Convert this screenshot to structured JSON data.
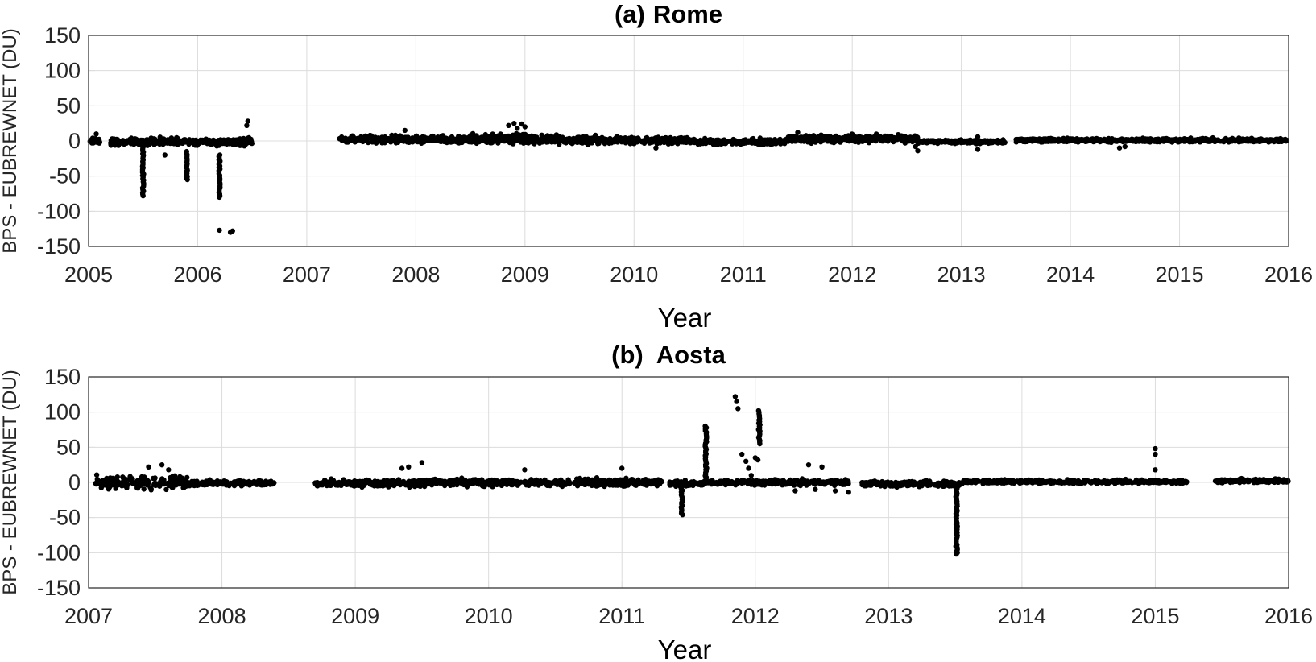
{
  "chart_data": [
    {
      "type": "scatter",
      "panel_label": "(a)",
      "title": "Rome",
      "xlabel": "Year",
      "ylabel": "BPS - EUBREWNET (DU)",
      "xlim": [
        2005,
        2016
      ],
      "ylim": [
        -150,
        150
      ],
      "xticks": [
        "2005",
        "2006",
        "2007",
        "2008",
        "2009",
        "2010",
        "2011",
        "2012",
        "2013",
        "2014",
        "2015",
        "2016"
      ],
      "yticks": [
        "150",
        "100",
        "50",
        "0",
        "-50",
        "-100",
        "-150"
      ],
      "grid": true,
      "clusters": [
        {
          "x_start": 2005.0,
          "x_end": 2005.12,
          "center": 0,
          "spread": 3
        },
        {
          "x_start": 2005.2,
          "x_end": 2006.5,
          "center": -1,
          "spread": 4
        },
        {
          "x_start": 2007.3,
          "x_end": 2008.5,
          "center": 2,
          "spread": 4
        },
        {
          "x_start": 2008.5,
          "x_end": 2009.3,
          "center": 3,
          "spread": 5
        },
        {
          "x_start": 2009.3,
          "x_end": 2010.5,
          "center": 1,
          "spread": 4
        },
        {
          "x_start": 2010.5,
          "x_end": 2011.4,
          "center": -1,
          "spread": 3
        },
        {
          "x_start": 2011.4,
          "x_end": 2012.6,
          "center": 3,
          "spread": 4
        },
        {
          "x_start": 2012.6,
          "x_end": 2013.4,
          "center": -1,
          "spread": 2
        },
        {
          "x_start": 2013.5,
          "x_end": 2016.0,
          "center": 1,
          "spread": 2
        }
      ],
      "spikes": [
        {
          "x": 2005.5,
          "y_from": -5,
          "y_to": -78
        },
        {
          "x": 2005.9,
          "y_from": -15,
          "y_to": -55
        },
        {
          "x": 2006.2,
          "y_from": -20,
          "y_to": -80
        }
      ],
      "points": [
        [
          2005.07,
          10
        ],
        [
          2005.7,
          -20
        ],
        [
          2006.2,
          -127
        ],
        [
          2006.3,
          -130
        ],
        [
          2006.32,
          -128
        ],
        [
          2006.45,
          22
        ],
        [
          2006.46,
          28
        ],
        [
          2007.9,
          15
        ],
        [
          2008.85,
          22
        ],
        [
          2008.9,
          25
        ],
        [
          2008.93,
          18
        ],
        [
          2008.97,
          24
        ],
        [
          2009.0,
          20
        ],
        [
          2010.2,
          -10
        ],
        [
          2011.5,
          12
        ],
        [
          2012.58,
          -8
        ],
        [
          2012.6,
          -14
        ],
        [
          2013.15,
          -12
        ],
        [
          2013.15,
          6
        ],
        [
          2014.45,
          -10
        ],
        [
          2014.5,
          -8
        ]
      ]
    },
    {
      "type": "scatter",
      "panel_label": "(b)",
      "title": "Aosta",
      "xlabel": "Year",
      "ylabel": "BPS - EUBREWNET (DU)",
      "xlim": [
        2007,
        2016
      ],
      "ylim": [
        -150,
        150
      ],
      "xticks": [
        "2007",
        "2008",
        "2009",
        "2010",
        "2011",
        "2012",
        "2013",
        "2014",
        "2015",
        "2016"
      ],
      "yticks": [
        "150",
        "100",
        "50",
        "0",
        "-50",
        "-100",
        "-150"
      ],
      "grid": true,
      "clusters": [
        {
          "x_start": 2007.05,
          "x_end": 2007.75,
          "center": 0,
          "spread": 7
        },
        {
          "x_start": 2007.75,
          "x_end": 2008.4,
          "center": -1,
          "spread": 3
        },
        {
          "x_start": 2008.7,
          "x_end": 2009.5,
          "center": -1,
          "spread": 4
        },
        {
          "x_start": 2009.5,
          "x_end": 2011.3,
          "center": 0,
          "spread": 4
        },
        {
          "x_start": 2011.35,
          "x_end": 2011.6,
          "center": -2,
          "spread": 3
        },
        {
          "x_start": 2011.6,
          "x_end": 2012.7,
          "center": 0,
          "spread": 3
        },
        {
          "x_start": 2012.8,
          "x_end": 2013.55,
          "center": -2,
          "spread": 3
        },
        {
          "x_start": 2013.55,
          "x_end": 2015.25,
          "center": 1,
          "spread": 2
        },
        {
          "x_start": 2015.45,
          "x_end": 2016.0,
          "center": 2,
          "spread": 2
        }
      ],
      "spikes": [
        {
          "x": 2011.45,
          "y_from": -5,
          "y_to": -46
        },
        {
          "x": 2011.63,
          "y_from": 5,
          "y_to": 80
        },
        {
          "x": 2012.03,
          "y_from": 55,
          "y_to": 102
        },
        {
          "x": 2013.51,
          "y_from": -5,
          "y_to": -102
        }
      ],
      "points": [
        [
          2007.45,
          22
        ],
        [
          2007.55,
          25
        ],
        [
          2007.6,
          18
        ],
        [
          2009.35,
          20
        ],
        [
          2009.4,
          22
        ],
        [
          2009.5,
          28
        ],
        [
          2010.27,
          18
        ],
        [
          2011.0,
          20
        ],
        [
          2011.85,
          122
        ],
        [
          2011.86,
          115
        ],
        [
          2011.87,
          105
        ],
        [
          2011.9,
          40
        ],
        [
          2011.93,
          30
        ],
        [
          2011.95,
          20
        ],
        [
          2011.97,
          10
        ],
        [
          2012.0,
          35
        ],
        [
          2012.02,
          32
        ],
        [
          2012.4,
          25
        ],
        [
          2012.5,
          22
        ],
        [
          2012.3,
          -12
        ],
        [
          2012.45,
          -10
        ],
        [
          2012.6,
          -12
        ],
        [
          2012.7,
          -14
        ],
        [
          2015.0,
          48
        ],
        [
          2015.0,
          40
        ],
        [
          2015.0,
          18
        ]
      ]
    }
  ]
}
